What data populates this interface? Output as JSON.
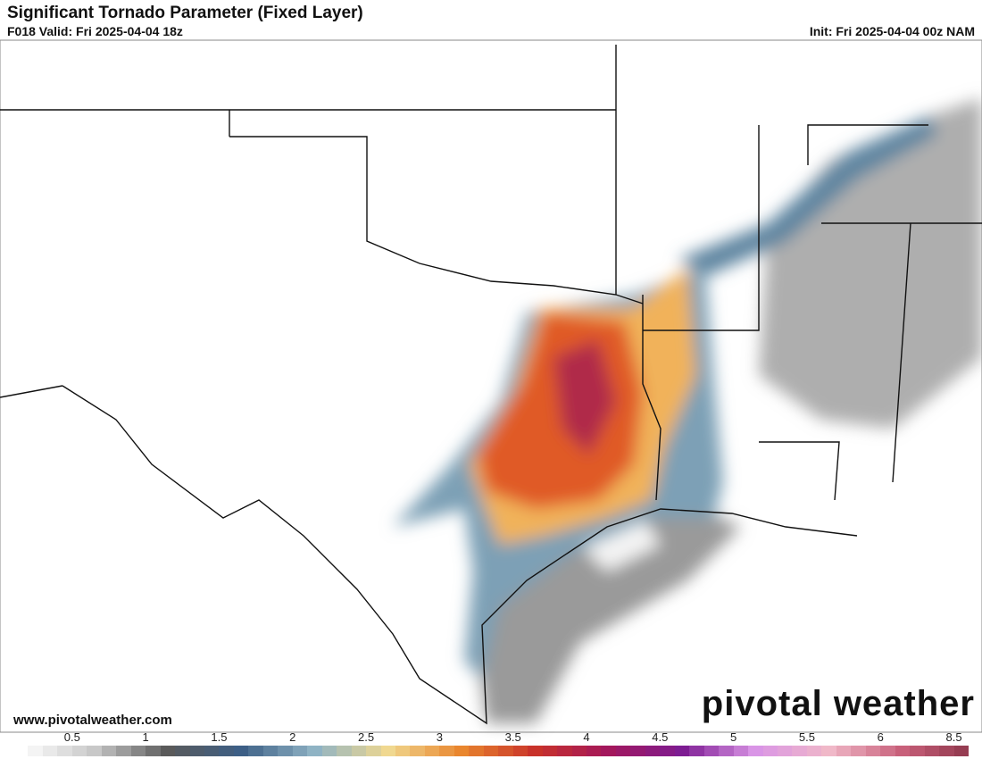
{
  "header": {
    "title": "Significant Tornado Parameter (Fixed Layer)",
    "valid": "F018 Valid: Fri 2025-04-04 18z",
    "init": "Init: Fri 2025-04-04 00z NAM"
  },
  "footer": {
    "website": "www.pivotalweather.com",
    "brand": "pivotal weather"
  },
  "colorbar": {
    "labels": [
      "0.5",
      "1",
      "1.5",
      "2",
      "2.5",
      "3",
      "3.5",
      "4",
      "4.5",
      "5",
      "5.5",
      "6",
      "8.5"
    ],
    "colors": [
      "#ffffff",
      "#c8c8c8",
      "#5a5a5a",
      "#3d5f86",
      "#8fb3c4",
      "#f0d890",
      "#e9862e",
      "#c8322a",
      "#a3175c",
      "#7d1c92",
      "#d995e6",
      "#f0b8c8",
      "#c8607a",
      "#8a3448"
    ]
  }
}
